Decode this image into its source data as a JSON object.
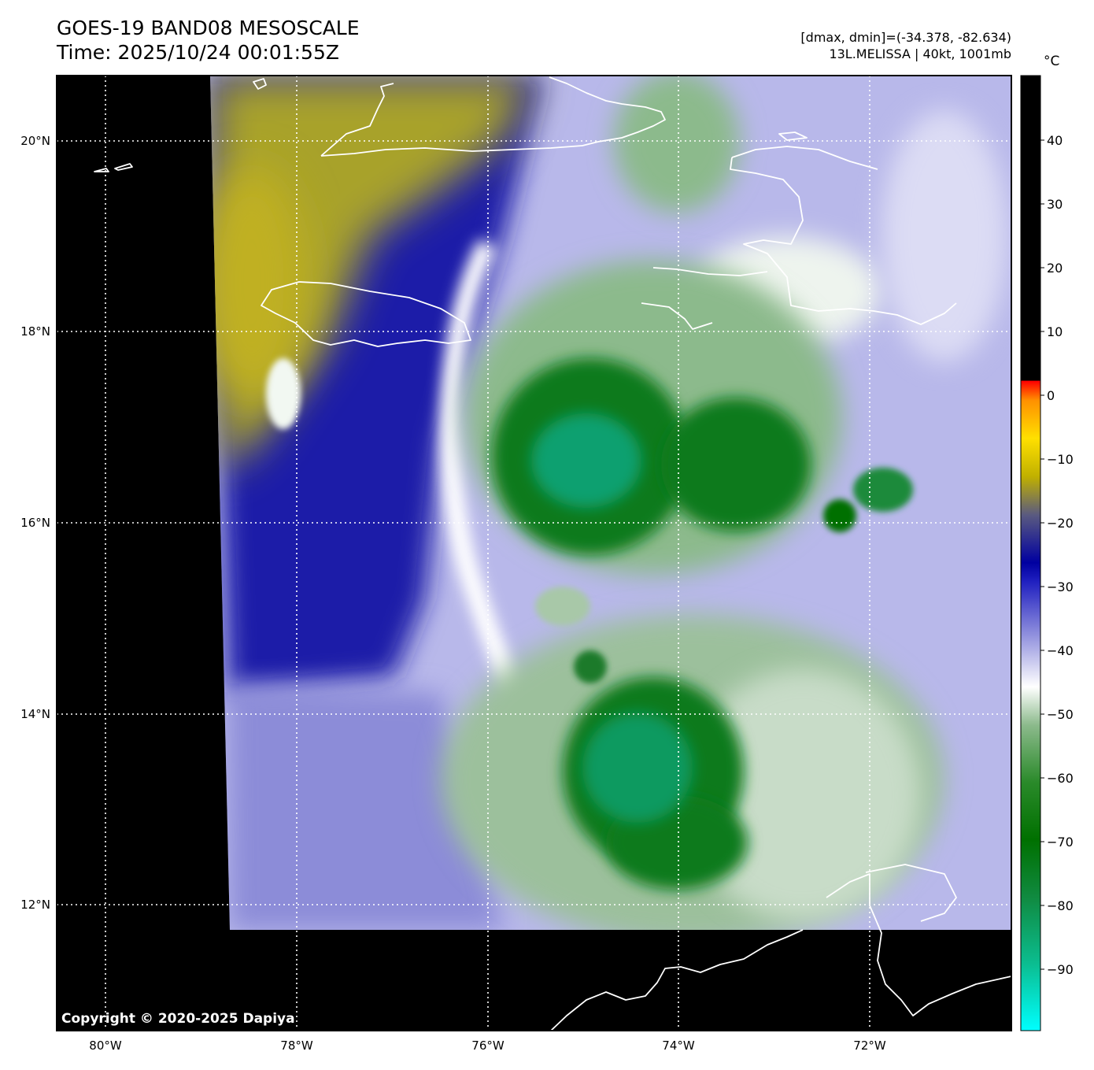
{
  "header": {
    "title": "GOES-19 BAND08 MESOSCALE",
    "time": "Time: 2025/10/24 00:01:55Z",
    "range": "[dmax, dmin]=(-34.378, -82.634)",
    "storm": "13L.MELISSA | 40kt, 1001mb"
  },
  "map": {
    "lat_labels": [
      "20°N",
      "18°N",
      "16°N",
      "14°N",
      "12°N"
    ],
    "lon_labels": [
      "80°W",
      "78°W",
      "76°W",
      "74°W",
      "72°W"
    ],
    "copyright": "Copyright © 2020-2025 Dapiya",
    "colors": {
      "no_data": "#000000",
      "dry_air": "#a8a22a",
      "mid_level": "#1a1aa8",
      "cold_tops": "#0a7a1a",
      "coldest_tops": "#10b890",
      "coastline": "#ffffff"
    }
  },
  "colorbar": {
    "unit": "°C",
    "ticks": [
      "40",
      "30",
      "20",
      "10",
      "0",
      "−10",
      "−20",
      "−30",
      "−40",
      "−50",
      "−60",
      "−70",
      "−80",
      "−90"
    ],
    "colors": [
      "#00ffff",
      "#0bbd90",
      "#108a40",
      "#007000",
      "#2a8a2a",
      "#8cba8c",
      "#ffffff",
      "#9999e0",
      "#2020c0",
      "#0000a0",
      "#5a5a80",
      "#c0b000",
      "#ffe000",
      "#ff9000",
      "#ff0000"
    ]
  }
}
